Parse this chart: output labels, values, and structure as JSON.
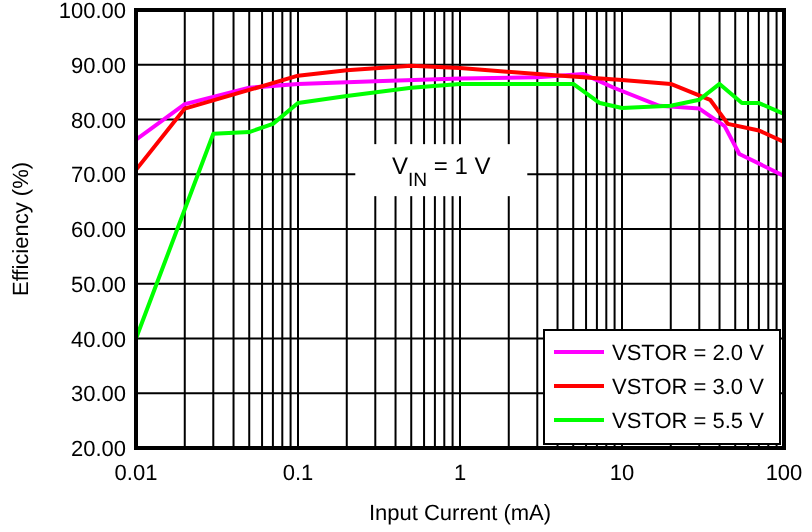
{
  "chart_data": {
    "type": "line",
    "xlabel": "Input Current (mA)",
    "ylabel": "Efficiency (%)",
    "log": "x",
    "grid": true,
    "legend": "bottom right",
    "xlim": [
      0.01,
      100
    ],
    "ylim": [
      20,
      100
    ],
    "xticks": [
      0.01,
      0.1,
      1,
      10,
      100
    ],
    "yticks": [
      {
        "value": 20,
        "label": "20.00"
      },
      {
        "value": 30,
        "label": "30.00"
      },
      {
        "value": 40,
        "label": "40.00"
      },
      {
        "value": 50,
        "label": "50.00"
      },
      {
        "value": 60,
        "label": "60.00"
      },
      {
        "value": 70,
        "label": "70.00"
      },
      {
        "value": 80,
        "label": "80.00"
      },
      {
        "value": 90,
        "label": "90.00"
      },
      {
        "value": 100,
        "label": "100.00"
      }
    ],
    "annotations": [
      "V$_{IN}$ = 1 V"
    ],
    "series": [
      {
        "name": "VSTOR = 2.0 V",
        "color": "#ff00ff",
        "x": [
          0.01,
          0.02,
          0.05,
          0.1,
          0.3,
          1,
          3,
          5.8,
          8.9,
          17,
          30,
          43,
          53,
          100
        ],
        "values": [
          76.3,
          82.8,
          85.8,
          86.5,
          87,
          87.5,
          87.7,
          88.3,
          85.8,
          82.5,
          82,
          78.8,
          73.7,
          69.7
        ]
      },
      {
        "name": "VSTOR = 3.0 V",
        "color": "#ff0000",
        "x": [
          0.01,
          0.02,
          0.05,
          0.1,
          0.2,
          0.5,
          1,
          3,
          10,
          20,
          35,
          45,
          70,
          100
        ],
        "values": [
          70.8,
          82,
          85.4,
          88,
          89,
          89.8,
          89.4,
          88.3,
          87.2,
          86.5,
          83.6,
          79.2,
          78,
          75.9
        ]
      },
      {
        "name": "VSTOR = 5.5 V",
        "color": "#00ff00",
        "x": [
          0.01,
          0.03,
          0.05,
          0.07,
          0.1,
          0.2,
          0.5,
          1,
          5,
          7.3,
          10,
          20,
          30,
          40,
          55,
          70,
          100
        ],
        "values": [
          40,
          77.4,
          77.7,
          79.2,
          83,
          84.3,
          85.8,
          86.5,
          86.5,
          83,
          82.1,
          82.5,
          83.6,
          86.5,
          83,
          83,
          81
        ]
      }
    ]
  }
}
